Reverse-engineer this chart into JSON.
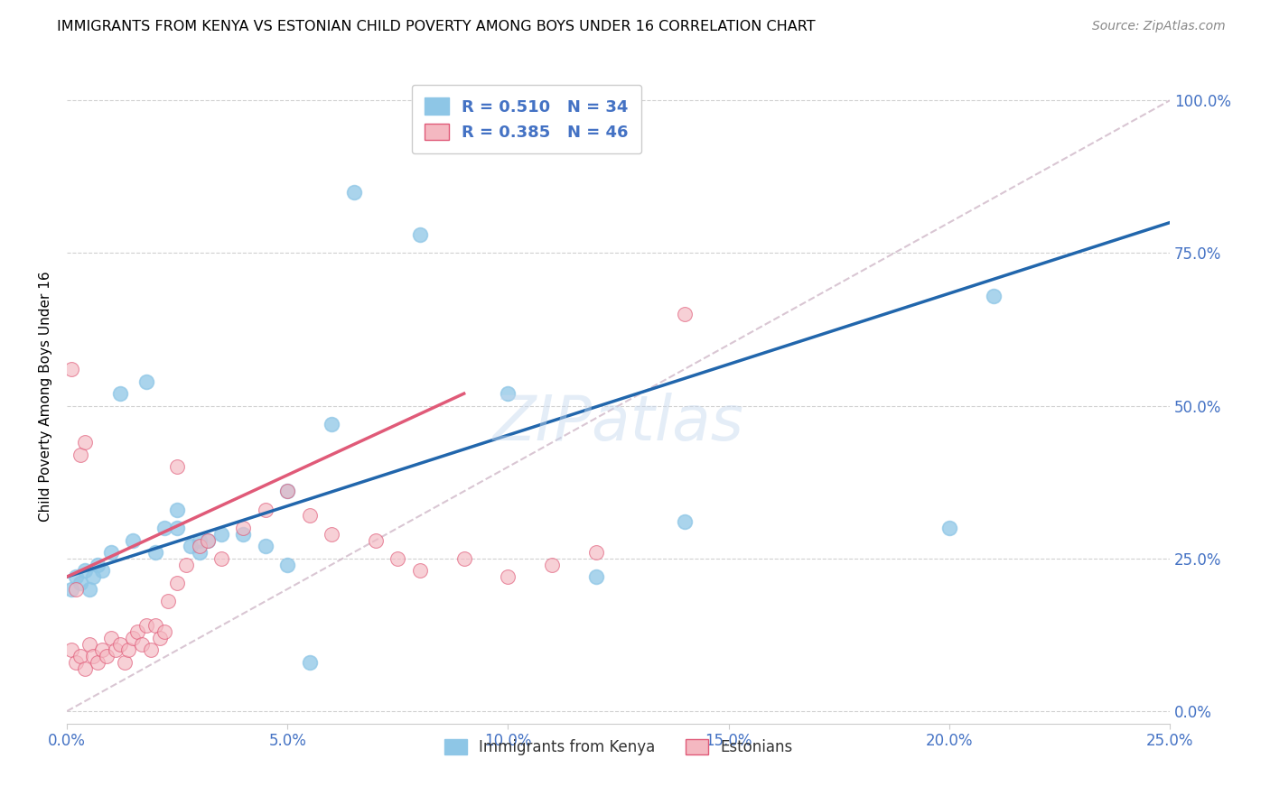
{
  "title": "IMMIGRANTS FROM KENYA VS ESTONIAN CHILD POVERTY AMONG BOYS UNDER 16 CORRELATION CHART",
  "source": "Source: ZipAtlas.com",
  "ylabel": "Child Poverty Among Boys Under 16",
  "legend_label1": "Immigrants from Kenya",
  "legend_label2": "Estonians",
  "R1": 0.51,
  "N1": 34,
  "R2": 0.385,
  "N2": 46,
  "blue_scatter_color": "#8ec6e6",
  "blue_line_color": "#2166ac",
  "pink_scatter_color": "#f4b8c1",
  "pink_line_color": "#e05a78",
  "axis_blue": "#4472C4",
  "watermark": "ZIPatlas",
  "xlim": [
    0,
    0.25
  ],
  "ylim": [
    -0.02,
    1.05
  ],
  "blue_line_x0": 0.0,
  "blue_line_y0": 0.22,
  "blue_line_x1": 0.25,
  "blue_line_y1": 0.8,
  "pink_line_x0": 0.0,
  "pink_line_y0": 0.22,
  "pink_line_x1": 0.09,
  "pink_line_y1": 0.52,
  "diag_color": "#d0b8c8",
  "blue_scatter_x": [
    0.001,
    0.002,
    0.003,
    0.004,
    0.005,
    0.006,
    0.007,
    0.008,
    0.01,
    0.012,
    0.015,
    0.018,
    0.02,
    0.022,
    0.025,
    0.028,
    0.03,
    0.032,
    0.035,
    0.04,
    0.045,
    0.05,
    0.06,
    0.065,
    0.08,
    0.1,
    0.12,
    0.14,
    0.2,
    0.21,
    0.05,
    0.03,
    0.025,
    0.055
  ],
  "blue_scatter_y": [
    0.2,
    0.22,
    0.21,
    0.23,
    0.2,
    0.22,
    0.24,
    0.23,
    0.26,
    0.52,
    0.28,
    0.54,
    0.26,
    0.3,
    0.3,
    0.27,
    0.28,
    0.28,
    0.29,
    0.29,
    0.27,
    0.36,
    0.47,
    0.85,
    0.78,
    0.52,
    0.22,
    0.31,
    0.3,
    0.68,
    0.24,
    0.26,
    0.33,
    0.08
  ],
  "pink_scatter_x": [
    0.001,
    0.002,
    0.003,
    0.004,
    0.005,
    0.006,
    0.007,
    0.008,
    0.009,
    0.01,
    0.011,
    0.012,
    0.013,
    0.014,
    0.015,
    0.016,
    0.017,
    0.018,
    0.019,
    0.02,
    0.021,
    0.022,
    0.023,
    0.025,
    0.027,
    0.03,
    0.032,
    0.035,
    0.04,
    0.045,
    0.05,
    0.055,
    0.06,
    0.07,
    0.075,
    0.08,
    0.09,
    0.1,
    0.11,
    0.12,
    0.001,
    0.002,
    0.003,
    0.004,
    0.025,
    0.14
  ],
  "pink_scatter_y": [
    0.1,
    0.08,
    0.09,
    0.07,
    0.11,
    0.09,
    0.08,
    0.1,
    0.09,
    0.12,
    0.1,
    0.11,
    0.08,
    0.1,
    0.12,
    0.13,
    0.11,
    0.14,
    0.1,
    0.14,
    0.12,
    0.13,
    0.18,
    0.21,
    0.24,
    0.27,
    0.28,
    0.25,
    0.3,
    0.33,
    0.36,
    0.32,
    0.29,
    0.28,
    0.25,
    0.23,
    0.25,
    0.22,
    0.24,
    0.26,
    0.56,
    0.2,
    0.42,
    0.44,
    0.4,
    0.65
  ],
  "yticks": [
    0.0,
    0.25,
    0.5,
    0.75,
    1.0
  ],
  "ytick_labels": [
    "0.0%",
    "25.0%",
    "50.0%",
    "75.0%",
    "100.0%"
  ],
  "xticks": [
    0.0,
    0.05,
    0.1,
    0.15,
    0.2,
    0.25
  ],
  "xtick_labels": [
    "0.0%",
    "5.0%",
    "10.0%",
    "15.0%",
    "20.0%",
    "25.0%"
  ]
}
